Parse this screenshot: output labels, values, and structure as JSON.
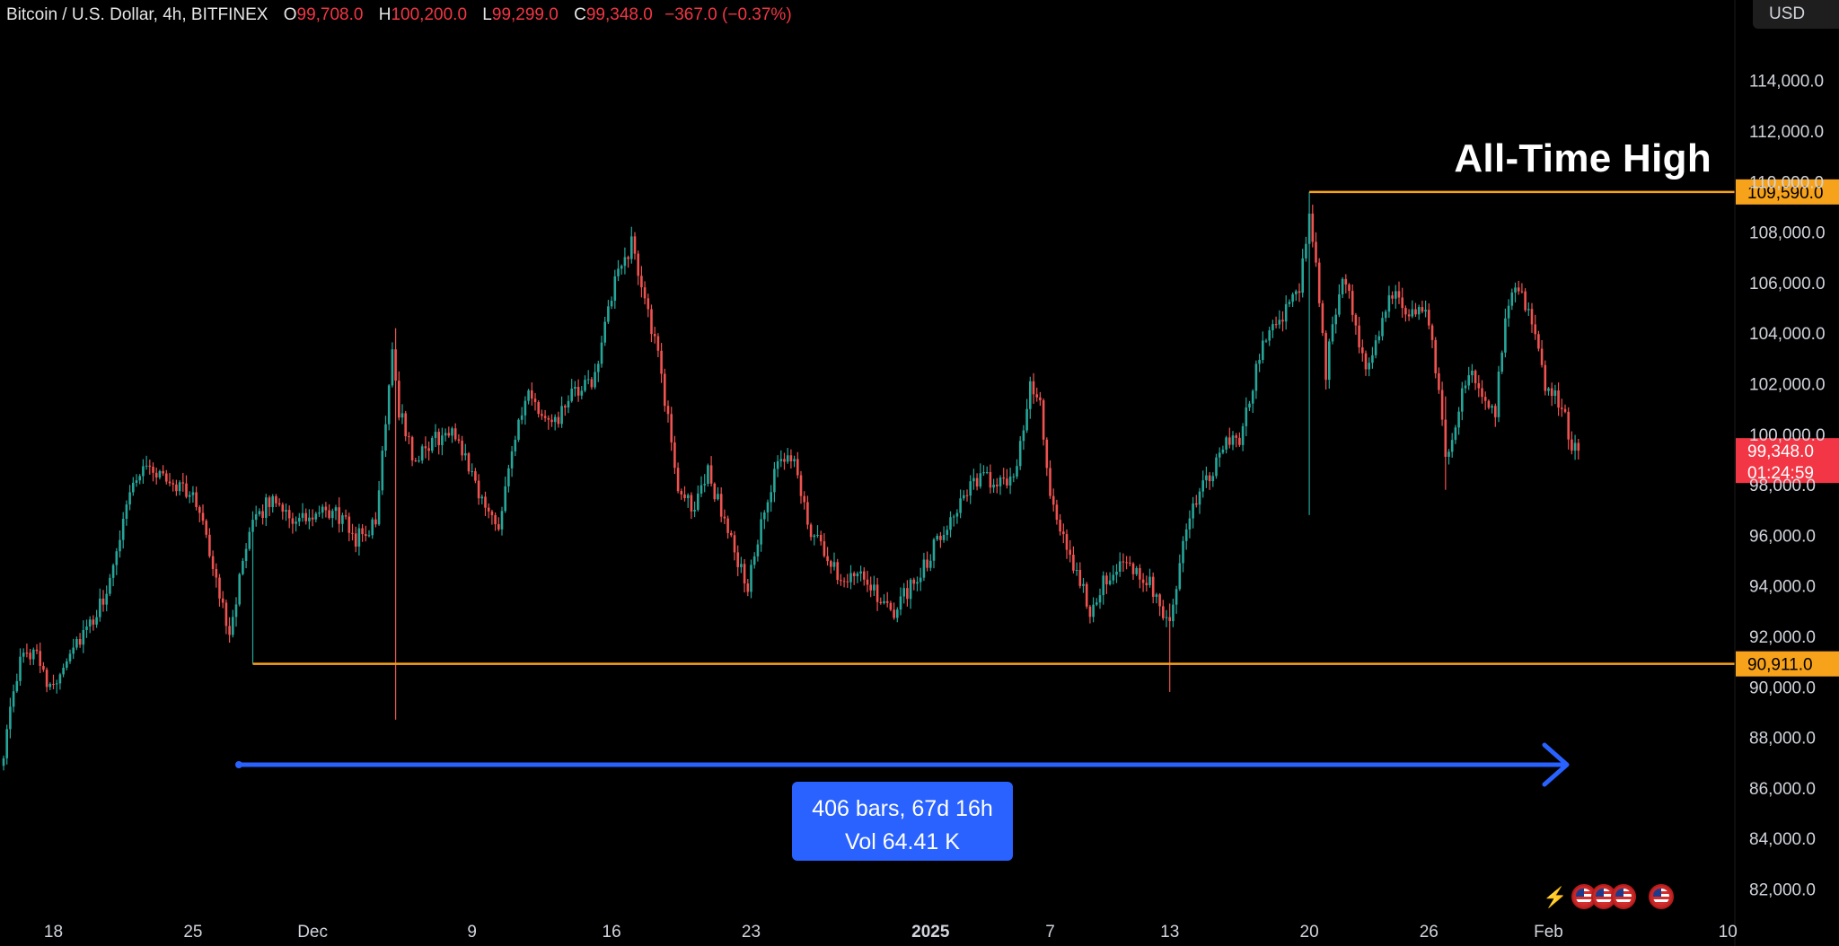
{
  "header": {
    "symbol": "Bitcoin / U.S. Dollar, 4h, BITFINEX",
    "open_label": "O",
    "open": "99,708.0",
    "high_label": "H",
    "high": "100,200.0",
    "low_label": "L",
    "low": "99,299.0",
    "close_label": "C",
    "close": "99,348.0",
    "change": "−367.0 (−0.37%)"
  },
  "currency_button": "USD",
  "annotations": {
    "ath_label": "All-Time High",
    "measure_line1": "406 bars, 67d 16h",
    "measure_line2": "Vol 64.41 K",
    "measure_start": "Nov 27 (bar 75)",
    "measure_end": "Feb 3 (bar 481)"
  },
  "icons": [
    "lightning-icon",
    "us-flag-icon",
    "us-flag-icon",
    "us-flag-icon",
    "us-flag-icon"
  ],
  "colors": {
    "background": "#000000",
    "up": "#26a69a",
    "down": "#ef5350",
    "level_line": "#f7a21b",
    "measure": "#2962ff",
    "last_price": "#f23645",
    "axis_text": "#d1d4dc"
  },
  "chart_data": {
    "type": "candlestick",
    "symbol": "Bitcoin / U.S. Dollar",
    "timeframe": "4h",
    "exchange": "BITFINEX",
    "ylim": [
      81000,
      116000
    ],
    "yticks": [
      82000,
      84000,
      86000,
      88000,
      90000,
      92000,
      94000,
      96000,
      98000,
      100000,
      102000,
      104000,
      106000,
      108000,
      110000,
      112000,
      114000
    ],
    "ytick_labels": [
      "82,000.0",
      "84,000.0",
      "86,000.0",
      "88,000.0",
      "90,000.0",
      "92,000.0",
      "94,000.0",
      "96,000.0",
      "98,000.0",
      "100,000.0",
      "102,000.0",
      "104,000.0",
      "106,000.0",
      "108,000.0",
      "110,000.0",
      "112,000.0",
      "114,000.0"
    ],
    "x_bar_range": [
      0,
      540
    ],
    "xticks": [
      {
        "label": "18",
        "date": "2024-11-18",
        "bar": 15,
        "bold": false
      },
      {
        "label": "25",
        "date": "2024-11-25",
        "bar": 57,
        "bold": false
      },
      {
        "label": "Dec",
        "date": "2024-12-01",
        "bar": 93,
        "bold": false
      },
      {
        "label": "9",
        "date": "2024-12-09",
        "bar": 141,
        "bold": false
      },
      {
        "label": "16",
        "date": "2024-12-16",
        "bar": 183,
        "bold": false
      },
      {
        "label": "23",
        "date": "2024-12-23",
        "bar": 225,
        "bold": false
      },
      {
        "label": "2025",
        "date": "2025-01-01",
        "bar": 279,
        "bold": true
      },
      {
        "label": "7",
        "date": "2025-01-07",
        "bar": 315,
        "bold": false
      },
      {
        "label": "13",
        "date": "2025-01-13",
        "bar": 351,
        "bold": false
      },
      {
        "label": "20",
        "date": "2025-01-20",
        "bar": 393,
        "bold": false
      },
      {
        "label": "26",
        "date": "2025-01-26",
        "bar": 429,
        "bold": false
      },
      {
        "label": "Feb",
        "date": "2025-02-01",
        "bar": 465,
        "bold": false
      },
      {
        "label": "10",
        "date": "2025-02-10",
        "bar": 519,
        "bold": false
      }
    ],
    "path_keypoints": [
      [
        0,
        87500
      ],
      [
        5,
        91000
      ],
      [
        10,
        91600
      ],
      [
        14,
        89800
      ],
      [
        20,
        91500
      ],
      [
        27,
        92500
      ],
      [
        33,
        94500
      ],
      [
        37,
        97500
      ],
      [
        42,
        98800
      ],
      [
        48,
        98300
      ],
      [
        55,
        97800
      ],
      [
        60,
        96800
      ],
      [
        64,
        94000
      ],
      [
        68,
        92300
      ],
      [
        72,
        94800
      ],
      [
        76,
        96800
      ],
      [
        82,
        97500
      ],
      [
        88,
        96500
      ],
      [
        93,
        96700
      ],
      [
        100,
        96900
      ],
      [
        106,
        95900
      ],
      [
        112,
        96400
      ],
      [
        117,
        103500
      ],
      [
        119,
        101000
      ],
      [
        124,
        98800
      ],
      [
        129,
        99800
      ],
      [
        136,
        100000
      ],
      [
        141,
        98500
      ],
      [
        145,
        97000
      ],
      [
        149,
        96500
      ],
      [
        153,
        99500
      ],
      [
        158,
        101500
      ],
      [
        165,
        100200
      ],
      [
        171,
        101500
      ],
      [
        177,
        102000
      ],
      [
        181,
        104200
      ],
      [
        185,
        106500
      ],
      [
        189,
        107500
      ],
      [
        193,
        105500
      ],
      [
        197,
        103000
      ],
      [
        200,
        100500
      ],
      [
        203,
        98000
      ],
      [
        207,
        97000
      ],
      [
        212,
        98500
      ],
      [
        216,
        97000
      ],
      [
        220,
        95300
      ],
      [
        224,
        94000
      ],
      [
        228,
        96300
      ],
      [
        233,
        98800
      ],
      [
        238,
        99100
      ],
      [
        242,
        96500
      ],
      [
        246,
        95500
      ],
      [
        252,
        94300
      ],
      [
        258,
        94700
      ],
      [
        263,
        93500
      ],
      [
        267,
        92800
      ],
      [
        272,
        93800
      ],
      [
        277,
        94800
      ],
      [
        283,
        96300
      ],
      [
        289,
        97600
      ],
      [
        295,
        98300
      ],
      [
        301,
        97900
      ],
      [
        305,
        98800
      ],
      [
        309,
        102000
      ],
      [
        312,
        101000
      ],
      [
        315,
        97600
      ],
      [
        319,
        95700
      ],
      [
        323,
        94500
      ],
      [
        327,
        93000
      ],
      [
        331,
        94300
      ],
      [
        335,
        94700
      ],
      [
        341,
        94500
      ],
      [
        345,
        94300
      ],
      [
        349,
        92500
      ],
      [
        351,
        92600
      ],
      [
        355,
        95500
      ],
      [
        359,
        97500
      ],
      [
        364,
        98500
      ],
      [
        368,
        99800
      ],
      [
        372,
        99500
      ],
      [
        376,
        102000
      ],
      [
        380,
        104000
      ],
      [
        384,
        104500
      ],
      [
        387,
        105300
      ],
      [
        390,
        105800
      ],
      [
        393,
        108500
      ],
      [
        395,
        106500
      ],
      [
        398,
        102500
      ],
      [
        400,
        104500
      ],
      [
        403,
        106000
      ],
      [
        406,
        105000
      ],
      [
        410,
        102500
      ],
      [
        414,
        104000
      ],
      [
        418,
        105700
      ],
      [
        422,
        105000
      ],
      [
        428,
        104900
      ],
      [
        432,
        102000
      ],
      [
        434,
        99000
      ],
      [
        437,
        100500
      ],
      [
        441,
        102500
      ],
      [
        445,
        101500
      ],
      [
        449,
        101000
      ],
      [
        452,
        104500
      ],
      [
        455,
        105800
      ],
      [
        458,
        105100
      ],
      [
        461,
        104200
      ],
      [
        464,
        101800
      ],
      [
        467,
        101500
      ],
      [
        470,
        100600
      ],
      [
        472,
        99300
      ],
      [
        474,
        99348
      ]
    ],
    "ath_level": 109590.0,
    "ath_label_value": "109,590.0",
    "ath_start_bar": 393,
    "support_level": 90911.0,
    "support_label_value": "90,911.0",
    "support_start_bar": 75,
    "last_price": 99348.0,
    "last_price_label": "99,348.0",
    "countdown_label": "01:24:59",
    "spikes": [
      {
        "bar": 118,
        "low": 88700,
        "high": 104200
      },
      {
        "bar": 351,
        "low": 89800,
        "high": 93300
      },
      {
        "bar": 393,
        "low": 96800,
        "high": 109590
      },
      {
        "bar": 434,
        "low": 97800,
        "high": 101500
      },
      {
        "bar": 75,
        "low": 90911,
        "high": 93000
      }
    ]
  }
}
